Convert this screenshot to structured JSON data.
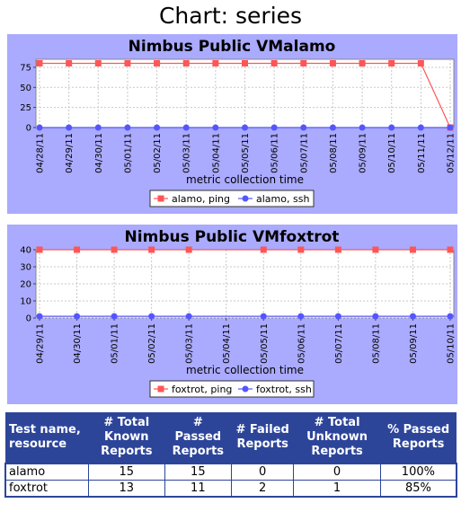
{
  "page": {
    "title": "Chart: series"
  },
  "chart_data": [
    {
      "type": "line",
      "title": "Nimbus Public VMalamo",
      "xlabel": "metric collection time",
      "ylabel": "",
      "x": [
        "04/28/11",
        "04/29/11",
        "04/30/11",
        "05/01/11",
        "05/02/11",
        "05/03/11",
        "05/04/11",
        "05/05/11",
        "05/06/11",
        "05/07/11",
        "05/08/11",
        "05/09/11",
        "05/10/11",
        "05/11/11",
        "05/12/11"
      ],
      "ylim": [
        0,
        85
      ],
      "yticks": [
        0,
        25,
        50,
        75
      ],
      "grid": true,
      "legend": "bottom",
      "series": [
        {
          "name": "alamo, ping",
          "color": "#ff5555",
          "marker": "square",
          "values": [
            80,
            80,
            80,
            80,
            80,
            80,
            80,
            80,
            80,
            80,
            80,
            80,
            80,
            80,
            0
          ]
        },
        {
          "name": "alamo, ssh",
          "color": "#5555ff",
          "marker": "circle",
          "values": [
            0,
            0,
            0,
            0,
            0,
            0,
            0,
            0,
            0,
            0,
            0,
            0,
            0,
            0,
            0
          ]
        }
      ]
    },
    {
      "type": "line",
      "title": "Nimbus Public VMfoxtrot",
      "xlabel": "metric collection time",
      "ylabel": "",
      "x": [
        "04/29/11",
        "04/30/11",
        "05/01/11",
        "05/02/11",
        "05/03/11",
        "05/04/11",
        "05/05/11",
        "05/06/11",
        "05/07/11",
        "05/08/11",
        "05/09/11",
        "05/10/11"
      ],
      "ylim": [
        0,
        40
      ],
      "yticks": [
        0,
        10,
        20,
        30,
        40
      ],
      "grid": true,
      "legend": "bottom",
      "series": [
        {
          "name": "foxtrot, ping",
          "color": "#ff5555",
          "marker": "square",
          "points": [
            [
              0,
              40
            ],
            [
              1,
              40
            ],
            [
              2,
              40
            ],
            [
              3,
              40
            ],
            [
              4,
              40
            ],
            [
              6,
              40
            ],
            [
              7,
              40
            ],
            [
              8,
              40
            ],
            [
              9,
              40
            ],
            [
              10,
              40
            ],
            [
              11,
              40
            ]
          ]
        },
        {
          "name": "foxtrot, ssh",
          "color": "#5555ff",
          "marker": "circle",
          "points": [
            [
              0,
              1
            ],
            [
              1,
              1
            ],
            [
              2,
              1
            ],
            [
              3,
              1
            ],
            [
              4,
              1
            ],
            [
              6,
              1
            ],
            [
              7,
              1
            ],
            [
              8,
              1
            ],
            [
              9,
              1
            ],
            [
              10,
              1
            ],
            [
              11,
              1
            ]
          ]
        }
      ]
    }
  ],
  "table": {
    "headers": [
      "Test name, resource",
      "# Total Known Reports",
      "# Passed Reports",
      "# Failed Reports",
      "# Total Unknown Reports",
      "% Passed Reports"
    ],
    "rows": [
      [
        "alamo",
        "15",
        "15",
        "0",
        "0",
        "100%"
      ],
      [
        "foxtrot",
        "13",
        "11",
        "2",
        "1",
        "85%"
      ]
    ]
  }
}
